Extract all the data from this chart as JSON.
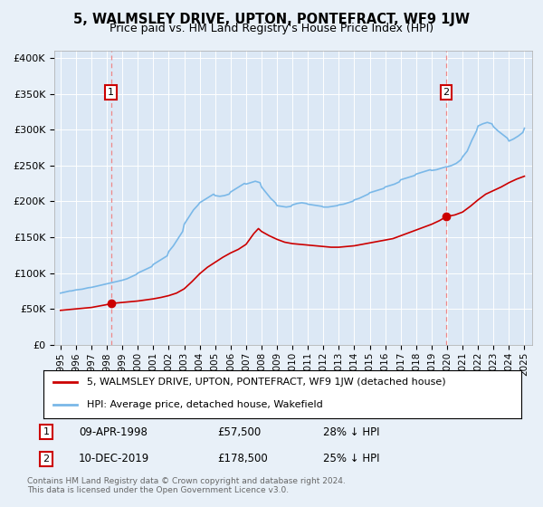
{
  "title": "5, WALMSLEY DRIVE, UPTON, PONTEFRACT, WF9 1JW",
  "subtitle": "Price paid vs. HM Land Registry's House Price Index (HPI)",
  "background_color": "#e8f0f8",
  "plot_bg_color": "#dce8f5",
  "ylim": [
    0,
    410000
  ],
  "yticks": [
    0,
    50000,
    100000,
    150000,
    200000,
    250000,
    300000,
    350000,
    400000
  ],
  "ytick_labels": [
    "£0",
    "£50K",
    "£100K",
    "£150K",
    "£200K",
    "£250K",
    "£300K",
    "£350K",
    "£400K"
  ],
  "xlim_start": 1994.6,
  "xlim_end": 2025.5,
  "xtick_years": [
    1995,
    1996,
    1997,
    1998,
    1999,
    2000,
    2001,
    2002,
    2003,
    2004,
    2005,
    2006,
    2007,
    2008,
    2009,
    2010,
    2011,
    2012,
    2013,
    2014,
    2015,
    2016,
    2017,
    2018,
    2019,
    2020,
    2021,
    2022,
    2023,
    2024,
    2025
  ],
  "purchase1_x": 1998.27,
  "purchase1_y": 57500,
  "purchase1_label": "1",
  "purchase1_date": "09-APR-1998",
  "purchase1_price": "£57,500",
  "purchase1_hpi": "28% ↓ HPI",
  "purchase2_x": 2019.94,
  "purchase2_y": 178500,
  "purchase2_label": "2",
  "purchase2_date": "10-DEC-2019",
  "purchase2_price": "£178,500",
  "purchase2_hpi": "25% ↓ HPI",
  "hpi_color": "#7ab8e8",
  "price_color": "#cc0000",
  "vline_color": "#ee8888",
  "legend_label_price": "5, WALMSLEY DRIVE, UPTON, PONTEFRACT, WF9 1JW (detached house)",
  "legend_label_hpi": "HPI: Average price, detached house, Wakefield",
  "footer1": "Contains HM Land Registry data © Crown copyright and database right 2024.",
  "footer2": "This data is licensed under the Open Government Licence v3.0.",
  "hpi_years": [
    1995.0,
    1995.1,
    1995.2,
    1995.3,
    1995.4,
    1995.5,
    1995.6,
    1995.7,
    1995.8,
    1995.9,
    1996.0,
    1996.2,
    1996.4,
    1996.6,
    1996.8,
    1997.0,
    1997.2,
    1997.4,
    1997.6,
    1997.8,
    1998.0,
    1998.2,
    1998.4,
    1998.6,
    1998.8,
    1999.0,
    1999.3,
    1999.6,
    1999.9,
    2000.0,
    2000.3,
    2000.6,
    2000.9,
    2001.0,
    2001.3,
    2001.6,
    2001.9,
    2002.0,
    2002.3,
    2002.6,
    2002.9,
    2003.0,
    2003.3,
    2003.6,
    2003.9,
    2004.0,
    2004.3,
    2004.6,
    2004.9,
    2005.0,
    2005.3,
    2005.6,
    2005.9,
    2006.0,
    2006.3,
    2006.6,
    2006.9,
    2007.0,
    2007.3,
    2007.6,
    2007.9,
    2008.0,
    2008.3,
    2008.6,
    2008.9,
    2009.0,
    2009.3,
    2009.6,
    2009.9,
    2010.0,
    2010.3,
    2010.6,
    2010.9,
    2011.0,
    2011.3,
    2011.6,
    2011.9,
    2012.0,
    2012.3,
    2012.6,
    2012.9,
    2013.0,
    2013.3,
    2013.6,
    2013.9,
    2014.0,
    2014.3,
    2014.6,
    2014.9,
    2015.0,
    2015.3,
    2015.6,
    2015.9,
    2016.0,
    2016.3,
    2016.6,
    2016.9,
    2017.0,
    2017.3,
    2017.6,
    2017.9,
    2018.0,
    2018.3,
    2018.6,
    2018.9,
    2019.0,
    2019.3,
    2019.6,
    2019.9,
    2020.0,
    2020.3,
    2020.6,
    2020.9,
    2021.0,
    2021.3,
    2021.6,
    2021.9,
    2022.0,
    2022.3,
    2022.6,
    2022.9,
    2023.0,
    2023.3,
    2023.6,
    2023.9,
    2024.0,
    2024.3,
    2024.6,
    2024.9,
    2025.0
  ],
  "hpi_vals": [
    72000,
    72500,
    73000,
    73500,
    74000,
    74500,
    75000,
    75000,
    75500,
    76000,
    76500,
    77000,
    77500,
    78500,
    79500,
    80000,
    81000,
    82000,
    83000,
    84000,
    85000,
    86000,
    87000,
    88000,
    89000,
    90000,
    92000,
    95000,
    98000,
    100000,
    103000,
    106000,
    109000,
    112000,
    116000,
    120000,
    124000,
    130000,
    138000,
    148000,
    158000,
    168000,
    178000,
    188000,
    195000,
    198000,
    202000,
    206000,
    210000,
    208000,
    207000,
    208000,
    210000,
    213000,
    217000,
    221000,
    225000,
    224000,
    226000,
    228000,
    226000,
    220000,
    212000,
    204000,
    198000,
    194000,
    193000,
    192000,
    193000,
    195000,
    197000,
    198000,
    197000,
    196000,
    195000,
    194000,
    193000,
    192000,
    192000,
    193000,
    194000,
    195000,
    196000,
    198000,
    200000,
    202000,
    204000,
    207000,
    210000,
    212000,
    214000,
    216000,
    218000,
    220000,
    222000,
    224000,
    227000,
    230000,
    232000,
    234000,
    236000,
    238000,
    240000,
    242000,
    244000,
    243000,
    244000,
    246000,
    248000,
    248000,
    250000,
    253000,
    258000,
    262000,
    270000,
    285000,
    298000,
    305000,
    308000,
    310000,
    308000,
    304000,
    298000,
    293000,
    288000,
    284000,
    287000,
    291000,
    296000,
    302000
  ],
  "price_years": [
    1995.0,
    1995.5,
    1996.0,
    1996.5,
    1997.0,
    1997.5,
    1998.0,
    1998.27,
    1998.5,
    1999.0,
    1999.5,
    2000.0,
    2000.5,
    2001.0,
    2001.5,
    2002.0,
    2002.5,
    2003.0,
    2003.5,
    2004.0,
    2004.5,
    2005.0,
    2005.5,
    2006.0,
    2006.5,
    2007.0,
    2007.5,
    2007.8,
    2008.0,
    2008.5,
    2009.0,
    2009.5,
    2010.0,
    2010.5,
    2011.0,
    2011.5,
    2012.0,
    2012.5,
    2013.0,
    2013.5,
    2014.0,
    2014.5,
    2015.0,
    2015.5,
    2016.0,
    2016.5,
    2017.0,
    2017.5,
    2018.0,
    2018.5,
    2019.0,
    2019.5,
    2019.94,
    2020.0,
    2020.5,
    2021.0,
    2021.5,
    2022.0,
    2022.5,
    2023.0,
    2023.5,
    2024.0,
    2024.5,
    2025.0
  ],
  "price_vals": [
    48000,
    49000,
    50000,
    51000,
    52000,
    54000,
    56000,
    57500,
    58000,
    59000,
    60000,
    61000,
    62500,
    64000,
    66000,
    68500,
    72000,
    78000,
    88000,
    99000,
    108000,
    115000,
    122000,
    128000,
    133000,
    140000,
    155000,
    162000,
    158000,
    152000,
    147000,
    143000,
    141000,
    140000,
    139000,
    138000,
    137000,
    136000,
    136000,
    137000,
    138000,
    140000,
    142000,
    144000,
    146000,
    148000,
    152000,
    156000,
    160000,
    164000,
    168000,
    173000,
    178500,
    179000,
    181000,
    185000,
    193000,
    202000,
    210000,
    215000,
    220000,
    226000,
    231000,
    235000
  ]
}
